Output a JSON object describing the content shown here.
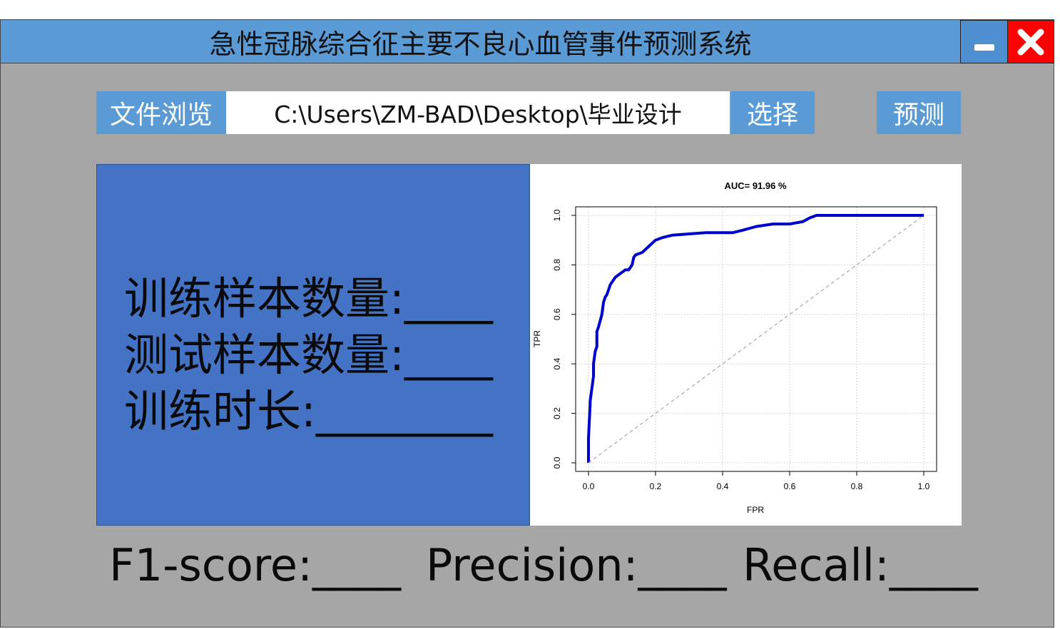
{
  "window": {
    "title": "急性冠脉综合征主要不良心血管事件预测系统",
    "accent_color": "#5b9bd5",
    "background_color": "#a6a6a6"
  },
  "toolbar": {
    "browse_label": "文件浏览",
    "path_value": "C:\\Users\\ZM-BAD\\Desktop\\毕业设计",
    "select_label": "选择",
    "predict_label": "预测"
  },
  "stats": {
    "train_samples": "训练样本数量:____",
    "test_samples": "测试样本数量:____",
    "train_time": "训练时长:________"
  },
  "metrics": {
    "f1": "F1-score:____",
    "precision": "Precision:____",
    "recall": "Recall:____"
  },
  "chart_data": {
    "type": "line",
    "title": "AUC= 91.96 %",
    "xlabel": "FPR",
    "ylabel": "TPR",
    "xlim": [
      0,
      1
    ],
    "ylim": [
      0,
      1
    ],
    "x_ticks": [
      "0.0",
      "0.2",
      "0.4",
      "0.6",
      "0.8",
      "1.0"
    ],
    "y_ticks": [
      "0.0",
      "0.2",
      "0.4",
      "0.6",
      "0.8",
      "1.0"
    ],
    "grid": true,
    "series": [
      {
        "color": "#0000cd",
        "x": [
          0.0,
          0.0,
          0.005,
          0.005,
          0.01,
          0.015,
          0.015,
          0.02,
          0.025,
          0.025,
          0.03,
          0.04,
          0.045,
          0.05,
          0.055,
          0.06,
          0.065,
          0.07,
          0.075,
          0.08,
          0.09,
          0.1,
          0.11,
          0.12,
          0.13,
          0.135,
          0.14,
          0.16,
          0.18,
          0.2,
          0.22,
          0.25,
          0.3,
          0.35,
          0.4,
          0.43,
          0.46,
          0.5,
          0.55,
          0.6,
          0.64,
          0.66,
          0.68,
          0.7,
          0.8,
          0.9,
          1.0
        ],
        "y": [
          0.0,
          0.1,
          0.24,
          0.25,
          0.3,
          0.35,
          0.4,
          0.45,
          0.47,
          0.53,
          0.55,
          0.6,
          0.65,
          0.67,
          0.68,
          0.7,
          0.72,
          0.73,
          0.74,
          0.75,
          0.76,
          0.77,
          0.78,
          0.78,
          0.8,
          0.83,
          0.84,
          0.85,
          0.875,
          0.9,
          0.91,
          0.92,
          0.925,
          0.93,
          0.93,
          0.93,
          0.94,
          0.955,
          0.965,
          0.965,
          0.975,
          0.99,
          1.0,
          1.0,
          1.0,
          1.0,
          1.0
        ]
      },
      {
        "color": "#aaaaaa",
        "x": [
          0,
          1
        ],
        "y": [
          0,
          1
        ]
      }
    ]
  }
}
